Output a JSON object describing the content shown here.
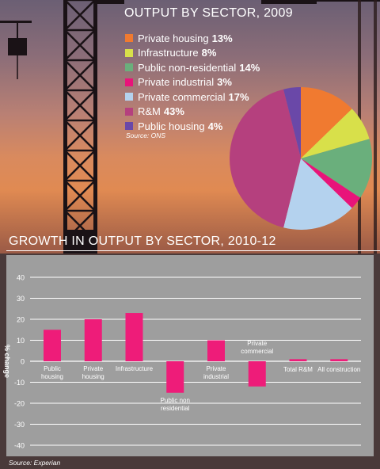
{
  "pie_chart": {
    "title": "OUTPUT BY SECTOR, 2009",
    "source": "Source: ONS"
  },
  "bar_chart": {
    "title": "GROWTH IN OUTPUT BY SECTOR, 2010-12",
    "source": "Source: Experian"
  },
  "chart_data": [
    {
      "type": "pie",
      "title": "OUTPUT BY SECTOR, 2009",
      "legend_placement": "left",
      "slices": [
        {
          "name": "Private housing",
          "label": "13%",
          "value": 13,
          "color": "#f07a30"
        },
        {
          "name": "Infrastructure",
          "label": "8%",
          "value": 8,
          "color": "#d8e04a"
        },
        {
          "name": "Public non-residential",
          "label": "14%",
          "value": 14,
          "color": "#6aaf7c"
        },
        {
          "name": "Private industrial",
          "label": "3%",
          "value": 3,
          "color": "#e8147a"
        },
        {
          "name": "Private commercial",
          "label": "17%",
          "value": 17,
          "color": "#b4d2ee"
        },
        {
          "name": "R&M",
          "label": "43%",
          "value": 43,
          "color": "#b5407e"
        },
        {
          "name": "Public housing",
          "label": "4%",
          "value": 4,
          "color": "#6a48a8"
        }
      ]
    },
    {
      "type": "bar",
      "title": "GROWTH IN OUTPUT BY SECTOR, 2010-12",
      "ylabel": "% change",
      "ylim": [
        -40,
        40
      ],
      "yticks": [
        40,
        30,
        20,
        10,
        0,
        -10,
        -20,
        -30,
        -40
      ],
      "grid": true,
      "bar_color": "#ee1c79",
      "categories": [
        {
          "lines": [
            "Public",
            "housing"
          ],
          "value": 15
        },
        {
          "lines": [
            "Private",
            "housing"
          ],
          "value": 20
        },
        {
          "lines": [
            "Infrastructure"
          ],
          "value": 23
        },
        {
          "lines": [
            "Public non",
            "residential"
          ],
          "value": -15
        },
        {
          "lines": [
            "Private",
            "industrial"
          ],
          "value": 10
        },
        {
          "lines": [
            "Private",
            "commercial"
          ],
          "value": -12
        },
        {
          "lines": [
            "Total R&M"
          ],
          "value": 1
        },
        {
          "lines": [
            "All construction"
          ],
          "value": 1
        }
      ]
    }
  ]
}
